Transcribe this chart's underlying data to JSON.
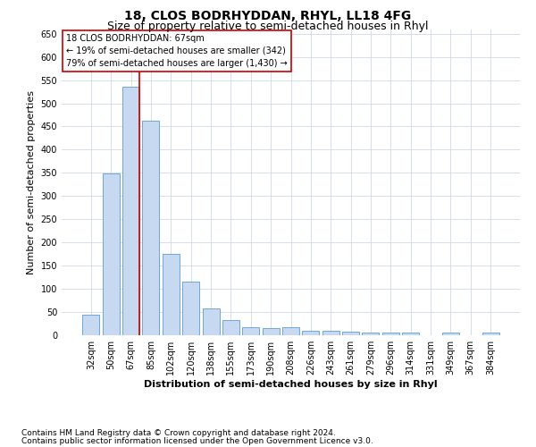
{
  "title": "18, CLOS BODRHYDDAN, RHYL, LL18 4FG",
  "subtitle": "Size of property relative to semi-detached houses in Rhyl",
  "xlabel": "Distribution of semi-detached houses by size in Rhyl",
  "ylabel": "Number of semi-detached properties",
  "categories": [
    "32sqm",
    "50sqm",
    "67sqm",
    "85sqm",
    "102sqm",
    "120sqm",
    "138sqm",
    "155sqm",
    "173sqm",
    "190sqm",
    "208sqm",
    "226sqm",
    "243sqm",
    "261sqm",
    "279sqm",
    "296sqm",
    "314sqm",
    "331sqm",
    "349sqm",
    "367sqm",
    "384sqm"
  ],
  "values": [
    45,
    348,
    535,
    462,
    175,
    115,
    58,
    33,
    18,
    15,
    18,
    10,
    10,
    7,
    6,
    6,
    5,
    0,
    5,
    0,
    5
  ],
  "bar_color": "#c6d9f0",
  "bar_edge_color": "#5b9bd5",
  "vline_x_index": 2,
  "vline_color": "#cc0000",
  "annotation_title": "18 CLOS BODRHYDDAN: 67sqm",
  "annotation_line1": "← 19% of semi-detached houses are smaller (342)",
  "annotation_line2": "79% of semi-detached houses are larger (1,430) →",
  "ylim": [
    0,
    660
  ],
  "yticks": [
    0,
    50,
    100,
    150,
    200,
    250,
    300,
    350,
    400,
    450,
    500,
    550,
    600,
    650
  ],
  "footer1": "Contains HM Land Registry data © Crown copyright and database right 2024.",
  "footer2": "Contains public sector information licensed under the Open Government Licence v3.0.",
  "title_fontsize": 10,
  "subtitle_fontsize": 9,
  "axis_label_fontsize": 8,
  "ylabel_fontsize": 8,
  "tick_fontsize": 7,
  "annotation_fontsize": 7,
  "footer_fontsize": 6.5,
  "background_color": "#ffffff",
  "grid_color": "#d0d8e8"
}
